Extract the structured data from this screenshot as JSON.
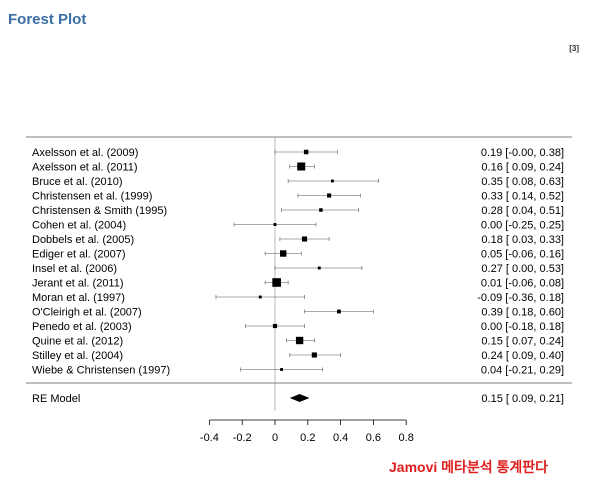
{
  "header": {
    "title": "Forest Plot",
    "ref": "[3]"
  },
  "watermark": "Jamovi 메타분석 통계판다",
  "chart_data": {
    "type": "forest",
    "studies": [
      {
        "label": "Axelsson et al. (2009)",
        "est": 0.19,
        "lo": -0.0,
        "hi": 0.38,
        "text": "0.19 [-0.00, 0.38]",
        "weight": 0.9
      },
      {
        "label": "Axelsson et al. (2011)",
        "est": 0.16,
        "lo": 0.09,
        "hi": 0.24,
        "text": "0.16 [ 0.09, 0.24]",
        "weight": 2.0
      },
      {
        "label": "Bruce et al. (2010)",
        "est": 0.35,
        "lo": 0.08,
        "hi": 0.63,
        "text": "0.35 [ 0.08, 0.63]",
        "weight": 0.4
      },
      {
        "label": "Christensen et al. (1999)",
        "est": 0.33,
        "lo": 0.14,
        "hi": 0.52,
        "text": "0.33 [ 0.14, 0.52]",
        "weight": 0.8
      },
      {
        "label": "Christensen & Smith (1995)",
        "est": 0.28,
        "lo": 0.04,
        "hi": 0.51,
        "text": "0.28 [ 0.04, 0.51]",
        "weight": 0.6
      },
      {
        "label": "Cohen et al. (2004)",
        "est": 0.0,
        "lo": -0.25,
        "hi": 0.25,
        "text": "0.00 [-0.25, 0.25]",
        "weight": 0.4
      },
      {
        "label": "Dobbels et al. (2005)",
        "est": 0.18,
        "lo": 0.03,
        "hi": 0.33,
        "text": "0.18 [ 0.03, 0.33]",
        "weight": 1.1
      },
      {
        "label": "Ediger et al. (2007)",
        "est": 0.05,
        "lo": -0.06,
        "hi": 0.16,
        "text": "0.05 [-0.06, 0.16]",
        "weight": 1.5
      },
      {
        "label": "Insel et al. (2006)",
        "est": 0.27,
        "lo": 0.0,
        "hi": 0.53,
        "text": "0.27 [ 0.00, 0.53]",
        "weight": 0.4
      },
      {
        "label": "Jerant et al. (2011)",
        "est": 0.01,
        "lo": -0.06,
        "hi": 0.08,
        "text": "0.01 [-0.06, 0.08]",
        "weight": 2.2
      },
      {
        "label": "Moran et al. (1997)",
        "est": -0.09,
        "lo": -0.36,
        "hi": 0.18,
        "text": "-0.09 [-0.36, 0.18]",
        "weight": 0.4
      },
      {
        "label": "O'Cleirigh et al. (2007)",
        "est": 0.39,
        "lo": 0.18,
        "hi": 0.6,
        "text": "0.39 [ 0.18, 0.60]",
        "weight": 0.7
      },
      {
        "label": "Penedo et al. (2003)",
        "est": 0.0,
        "lo": -0.18,
        "hi": 0.18,
        "text": "0.00 [-0.18, 0.18]",
        "weight": 0.8
      },
      {
        "label": "Quine et al. (2012)",
        "est": 0.15,
        "lo": 0.07,
        "hi": 0.24,
        "text": "0.15 [ 0.07, 0.24]",
        "weight": 1.8
      },
      {
        "label": "Stilley et al. (2004)",
        "est": 0.24,
        "lo": 0.09,
        "hi": 0.4,
        "text": "0.24 [ 0.09, 0.40]",
        "weight": 1.1
      },
      {
        "label": "Wiebe & Christensen (1997)",
        "est": 0.04,
        "lo": -0.21,
        "hi": 0.29,
        "text": "0.04 [-0.21, 0.29]",
        "weight": 0.4
      }
    ],
    "summary": {
      "label": "RE Model",
      "est": 0.15,
      "lo": 0.09,
      "hi": 0.21,
      "text": "0.15 [ 0.09, 0.21]"
    },
    "xaxis": {
      "ticks": [
        -0.4,
        -0.2,
        0,
        0.2,
        0.4,
        0.6,
        0.8
      ],
      "tick_labels": [
        "-0.4",
        "-0.2",
        "0",
        "0.2",
        "0.4",
        "0.6",
        "0.8"
      ],
      "xlim": [
        -0.4,
        0.8
      ],
      "reference_line": 0
    }
  }
}
